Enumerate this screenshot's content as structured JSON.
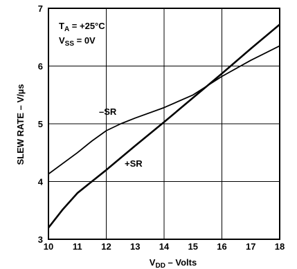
{
  "chart_data": {
    "type": "line",
    "xlabel_main": "V",
    "xlabel_sub": "DD",
    "xlabel_rest": " – Volts",
    "ylabel": "SLEW RATE – V/µs",
    "xlim": [
      10,
      18
    ],
    "ylim": [
      3,
      7
    ],
    "x_ticks": [
      "10",
      "11",
      "12",
      "13",
      "14",
      "15",
      "16",
      "17",
      "18"
    ],
    "y_ticks": [
      "3",
      "4",
      "5",
      "6",
      "7"
    ],
    "grid": true,
    "annotations": [
      {
        "main": "T",
        "sub": "A",
        "rest": " = +25°C"
      },
      {
        "main": "V",
        "sub": "SS",
        "rest": " = 0V"
      }
    ],
    "series": [
      {
        "name": "–SR",
        "x": [
          10,
          11,
          11.5,
          12,
          12.5,
          13,
          14,
          15,
          16,
          17,
          18
        ],
        "y": [
          4.13,
          4.5,
          4.7,
          4.88,
          5.0,
          5.1,
          5.28,
          5.5,
          5.82,
          6.1,
          6.35
        ]
      },
      {
        "name": "+SR",
        "x": [
          10,
          10.5,
          11,
          11.5,
          12,
          13,
          14,
          15,
          16,
          17,
          18
        ],
        "y": [
          3.2,
          3.52,
          3.8,
          4.0,
          4.2,
          4.62,
          5.03,
          5.45,
          5.87,
          6.3,
          6.72
        ]
      }
    ]
  }
}
